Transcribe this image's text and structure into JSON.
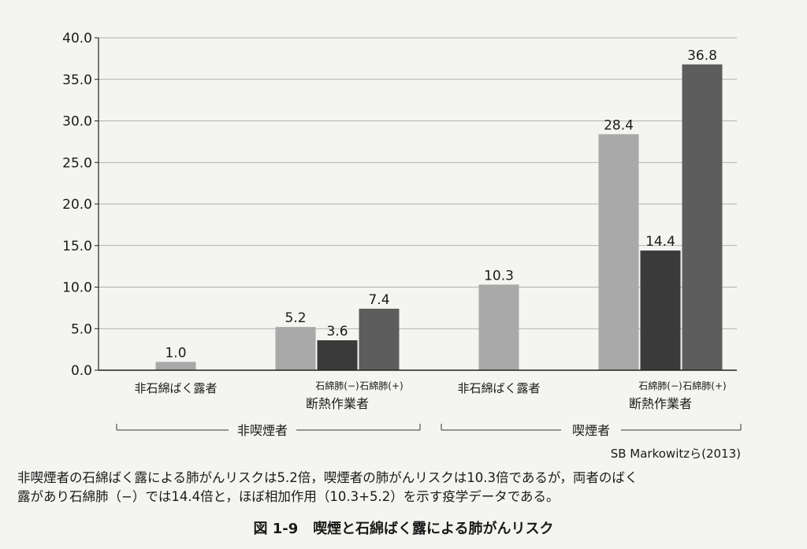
{
  "chart_data": {
    "type": "bar",
    "ylim": [
      0,
      40
    ],
    "yticks": [
      "0.0",
      "5.0",
      "10.0",
      "15.0",
      "20.0",
      "25.0",
      "30.0",
      "35.0",
      "40.0"
    ],
    "grid": true,
    "colors": {
      "light": "#a9a9a9",
      "dark": "#3a3a3a",
      "mid": "#5d5d5d"
    },
    "bars": [
      {
        "value": 1.0,
        "label": "1.0",
        "group": 0,
        "slot": 0,
        "slots": 1,
        "color": "light"
      },
      {
        "value": 5.2,
        "label": "5.2",
        "group": 1,
        "slot": 0,
        "slots": 3,
        "color": "light"
      },
      {
        "value": 3.6,
        "label": "3.6",
        "group": 1,
        "slot": 1,
        "slots": 3,
        "color": "dark"
      },
      {
        "value": 7.4,
        "label": "7.4",
        "group": 1,
        "slot": 2,
        "slots": 3,
        "color": "mid"
      },
      {
        "value": 10.3,
        "label": "10.3",
        "group": 2,
        "slot": 0,
        "slots": 1,
        "color": "light"
      },
      {
        "value": 28.4,
        "label": "28.4",
        "group": 3,
        "slot": 0,
        "slots": 3,
        "color": "light"
      },
      {
        "value": 14.4,
        "label": "14.4",
        "group": 3,
        "slot": 1,
        "slots": 3,
        "color": "dark"
      },
      {
        "value": 36.8,
        "label": "36.8",
        "group": 3,
        "slot": 2,
        "slots": 3,
        "color": "mid"
      }
    ],
    "sub_labels": [
      "石綿肺(−)",
      "石綿肺(+)"
    ],
    "categories": [
      {
        "label": "非石綿ばく露者",
        "group": 0
      },
      {
        "label": "断熱作業者",
        "group": 1
      },
      {
        "label": "非石綿ばく露者",
        "group": 2
      },
      {
        "label": "断熱作業者",
        "group": 3
      }
    ],
    "brackets": [
      {
        "label": "非喫煙者",
        "groups": [
          0,
          1
        ]
      },
      {
        "label": "喫煙者",
        "groups": [
          2,
          3
        ]
      }
    ],
    "source": "SB Markowitzら(2013)"
  },
  "caption": [
    "非喫煙者の石綿ばく露による肺がんリスクは5.2倍，喫煙者の肺がんリスクは10.3倍であるが，両者のばく",
    "露があり石綿肺（−）では14.4倍と，ほぼ相加作用（10.3+5.2）を示す疫学データである。"
  ],
  "figure": {
    "number": "図 1-9",
    "title": "喫煙と石綿ばく露による肺がんリスク"
  }
}
